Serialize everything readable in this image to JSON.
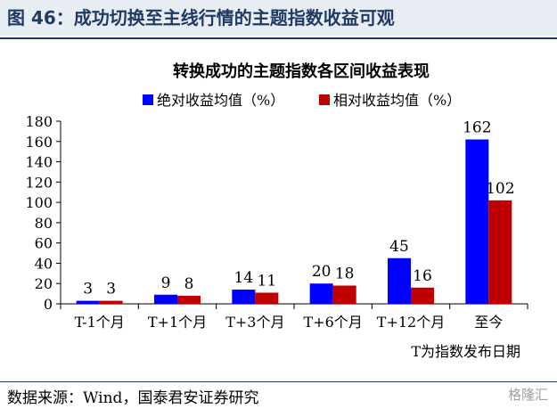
{
  "figure_title": "图 46：成功切换至主线行情的主题指数收益可观",
  "source_note": "数据来源：Wind，国泰君安证券研究",
  "watermark": "格隆汇",
  "chart_data": {
    "type": "bar",
    "title": "转换成功的主题指数各区间收益表现",
    "xlabel": "T为指数发布日期",
    "ylabel": "",
    "ylim": [
      0,
      180
    ],
    "yticks": [
      0,
      20,
      40,
      60,
      80,
      100,
      120,
      140,
      160,
      180
    ],
    "categories": [
      "T-1个月",
      "T+1个月",
      "T+3个月",
      "T+6个月",
      "T+12个月",
      "至今"
    ],
    "series": [
      {
        "name": "绝对收益均值（%）",
        "color": "#0000ff",
        "values": [
          3,
          9,
          14,
          20,
          45,
          162
        ]
      },
      {
        "name": "相对收益均值（%）",
        "color": "#c00000",
        "values": [
          3,
          8,
          11,
          18,
          16,
          102
        ]
      }
    ],
    "legend": "top",
    "grid": false
  }
}
